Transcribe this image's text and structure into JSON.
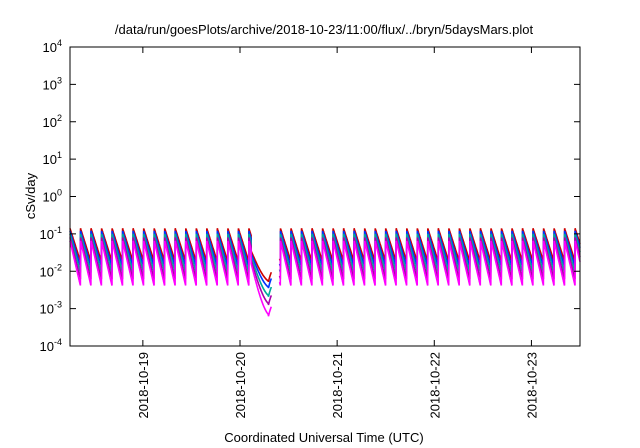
{
  "chart_data": {
    "type": "line",
    "title": "/data/run/goesPlots/archive/2018-10-23/11:00/flux/../bryn/5daysMars.plot",
    "xlabel": "Coordinated Universal Time (UTC)",
    "ylabel": "cSv/day",
    "yscale": "log",
    "ylim": [
      0.0001,
      10000
    ],
    "xlim": [
      "2018-10-18T06:00",
      "2018-10-23T12:00"
    ],
    "grid": false,
    "legend": "none",
    "y_ticks": [
      {
        "base": "10",
        "exp": "-4",
        "value": 0.0001
      },
      {
        "base": "10",
        "exp": "-3",
        "value": 0.001
      },
      {
        "base": "10",
        "exp": "-2",
        "value": 0.01
      },
      {
        "base": "10",
        "exp": "-1",
        "value": 0.1
      },
      {
        "base": "10",
        "exp": "0",
        "value": 1
      },
      {
        "base": "10",
        "exp": "1",
        "value": 10
      },
      {
        "base": "10",
        "exp": "2",
        "value": 100
      },
      {
        "base": "10",
        "exp": "3",
        "value": 1000
      },
      {
        "base": "10",
        "exp": "4",
        "value": 10000
      }
    ],
    "x_ticks": [
      "2018-10-19",
      "2018-10-20",
      "2018-10-21",
      "2018-10-22",
      "2018-10-23"
    ],
    "sawtooth_period_hours": 2.6,
    "gap": {
      "start": "2018-10-20T07:45",
      "end": "2018-10-20T09:45"
    },
    "series": [
      {
        "color": "#cc0000",
        "peak": 0.14,
        "trough": 0.018,
        "dip_min": 0.005
      },
      {
        "color": "#0033ff",
        "peak": 0.12,
        "trough": 0.013,
        "dip_min": 0.0034
      },
      {
        "color": "#00aa99",
        "peak": 0.1,
        "trough": 0.009,
        "dip_min": 0.002
      },
      {
        "color": "#aa00aa",
        "peak": 0.08,
        "trough": 0.006,
        "dip_min": 0.0012
      },
      {
        "color": "#ff00ff",
        "peak": 0.065,
        "trough": 0.004,
        "dip_min": 0.0006
      }
    ]
  }
}
